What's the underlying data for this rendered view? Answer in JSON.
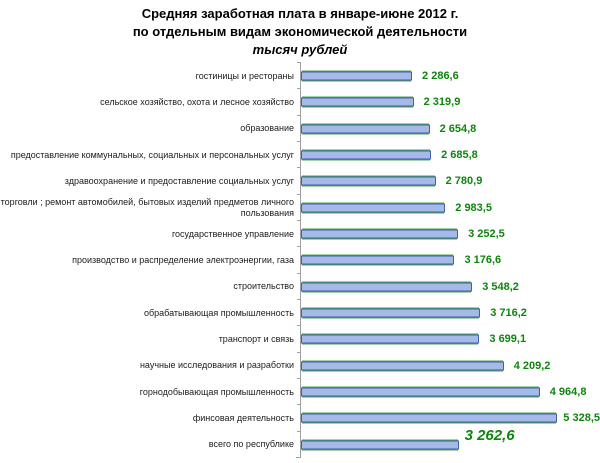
{
  "title": {
    "line1": "Средняя заработная плата в январе-июне 2012 г.",
    "line2": "по отдельным видам экономической деятельности",
    "unit": "тысяч рублей"
  },
  "chart_data": {
    "type": "bar",
    "orientation": "horizontal",
    "title": "Средняя заработная плата в январе-июне 2012 г. по отдельным видам экономической деятельности",
    "ylabel": "",
    "xlabel": "тысяч рублей",
    "axis_max": 6270,
    "grid": false,
    "legend": "none",
    "number_format": "space as thousands separator, comma as decimal mark",
    "colors": {
      "bar_fill": "#a6b9e9",
      "bar_border": "#3f60aa",
      "bar_edge": "#4fa34f",
      "value_text": "#0f840f",
      "axis_line": "#a0a0a0",
      "label_text": "#1c1c1c"
    },
    "rows": [
      {
        "label": "гостиницы и рестораны",
        "value": 2286.6,
        "display": "2 286,6"
      },
      {
        "label": "сельское хозяйство, охота и лесное хозяйство",
        "value": 2319.9,
        "display": "2 319,9"
      },
      {
        "label": "образование",
        "value": 2654.8,
        "display": "2 654,8"
      },
      {
        "label": "предоставление коммунальных, социальных и персональных услуг",
        "value": 2685.8,
        "display": "2 685,8"
      },
      {
        "label": "здравоохранение и предоставление социальных услуг",
        "value": 2780.9,
        "display": "2 780,9"
      },
      {
        "label": "торговли ; ремонт автомобилей, бытовых изделий предметов личного пользования",
        "value": 2983.5,
        "display": "2 983,5"
      },
      {
        "label": "государственное управление",
        "value": 3252.5,
        "display": "3 252,5"
      },
      {
        "label": "производство и распределение электроэнергии, газа",
        "value": 3176.6,
        "display": "3 176,6"
      },
      {
        "label": "строительство",
        "value": 3548.2,
        "display": "3 548,2"
      },
      {
        "label": "обрабатывающая промышленность",
        "value": 3716.2,
        "display": "3 716,2"
      },
      {
        "label": "транспорт и связь",
        "value": 3699.1,
        "display": "3 699,1"
      },
      {
        "label": "научные исследования и разработки",
        "value": 4209.2,
        "display": "4 209,2"
      },
      {
        "label": "горнодобывающая промышленность",
        "value": 4964.8,
        "display": "4 964,8"
      },
      {
        "label": "финсовая деятельность",
        "value": 5328.5,
        "display": "5 328,5",
        "overlap": true
      },
      {
        "label": "всего по республике",
        "value": 3262.6,
        "display": "3 262,6",
        "emphasized": true
      }
    ]
  }
}
